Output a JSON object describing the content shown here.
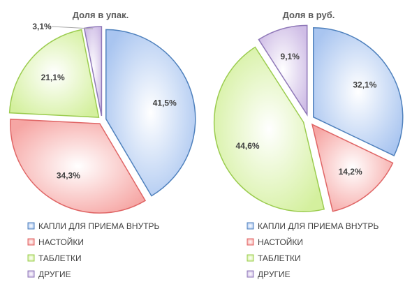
{
  "chart_data": [
    {
      "type": "pie",
      "title": "Доля в упак.",
      "categories": [
        "КАПЛИ ДЛЯ ПРИЕМА ВНУТРЬ",
        "НАСТОЙКИ",
        "ТАБЛЕТКИ",
        "ДРУГИЕ"
      ],
      "values": [
        41.5,
        34.3,
        21.1,
        3.1
      ],
      "labels": [
        "41,5%",
        "34,3%",
        "21,1%",
        "3,1%"
      ],
      "exploded": true,
      "legend_position": "bottom"
    },
    {
      "type": "pie",
      "title": "Доля в руб.",
      "categories": [
        "КАПЛИ ДЛЯ ПРИЕМА ВНУТРЬ",
        "НАСТОЙКИ",
        "ТАБЛЕТКИ",
        "ДРУГИЕ"
      ],
      "values": [
        32.1,
        14.2,
        44.6,
        9.1
      ],
      "labels": [
        "32,1%",
        "14,2%",
        "44,6%",
        "9,1%"
      ],
      "exploded": true,
      "legend_position": "bottom"
    }
  ],
  "colors": {
    "fills": [
      "#c9dbf7",
      "#fbc7c6",
      "#e4f5c3",
      "#e2d7ee"
    ],
    "strokes": [
      "#4f81bd",
      "#e06666",
      "#9bcc4f",
      "#8f78b8"
    ]
  }
}
